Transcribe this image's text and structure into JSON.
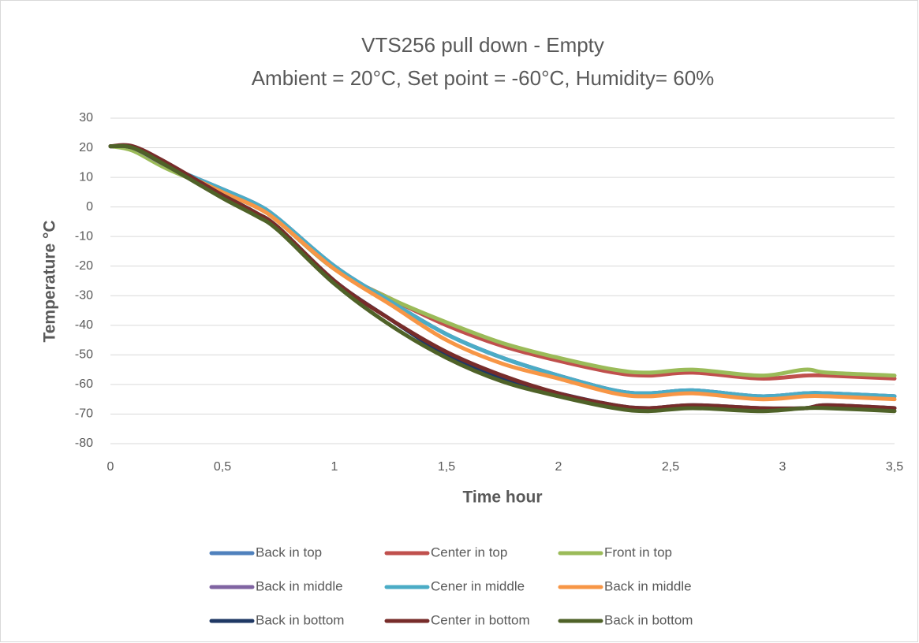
{
  "chart_data": {
    "type": "line",
    "title": "VTS256 pull down - Empty",
    "subtitle": "Ambient = 20°C, Set point = -60°C, Humidity= 60%",
    "x_label": "Time hour",
    "y_label": "Temperature °C",
    "x": [
      0,
      0.1,
      0.25,
      0.5,
      0.65,
      0.75,
      1,
      1.25,
      1.5,
      1.75,
      2,
      2.25,
      2.4,
      2.6,
      2.9,
      3.1,
      3.2,
      3.5
    ],
    "series": [
      {
        "name": "Back in top",
        "color": "#4f81bd",
        "values": [
          20.5,
          20,
          14,
          6,
          1,
          -4,
          -20,
          -32,
          -43,
          -51,
          -57,
          -62,
          -63,
          -62,
          -64,
          -63,
          -63,
          -64
        ]
      },
      {
        "name": "Center in top",
        "color": "#c0504d",
        "values": [
          20.5,
          20,
          14,
          5,
          0,
          -5,
          -21,
          -31,
          -40,
          -47,
          -52,
          -56,
          -57,
          -56,
          -58,
          -57,
          -57,
          -58
        ]
      },
      {
        "name": "Front in top",
        "color": "#9bbb59",
        "values": [
          20.5,
          19,
          13,
          5,
          0,
          -5,
          -21,
          -31,
          -39,
          -46,
          -51,
          -55,
          -56,
          -55,
          -57,
          -55,
          -56,
          -57
        ]
      },
      {
        "name": "Back in middle",
        "color": "#8064a2",
        "values": [
          20.5,
          20,
          14,
          6,
          1,
          -4,
          -20,
          -32,
          -43,
          -51,
          -57,
          -62,
          -63,
          -62,
          -64,
          -63,
          -63,
          -64
        ]
      },
      {
        "name": "Cener in middle",
        "color": "#4bacc6",
        "values": [
          20.5,
          20,
          14,
          6,
          1,
          -4,
          -20,
          -32,
          -43,
          -51,
          -57,
          -62,
          -63,
          -62,
          -64,
          -63,
          -63,
          -64
        ]
      },
      {
        "name": "Back in middle",
        "color": "#f79646",
        "values": [
          20.5,
          20,
          14,
          5,
          0,
          -5,
          -21,
          -33,
          -45,
          -53,
          -58,
          -63,
          -64,
          -63,
          -65,
          -64,
          -64,
          -65
        ]
      },
      {
        "name": "Back in bottom",
        "color": "#1f3864",
        "values": [
          20.5,
          20,
          14,
          4,
          -2,
          -7,
          -25,
          -38,
          -50,
          -58,
          -63,
          -67,
          -68,
          -67,
          -68,
          -68,
          -67,
          -68
        ]
      },
      {
        "name": "Center in bottom",
        "color": "#772c2a",
        "values": [
          20.5,
          20.5,
          15,
          4,
          -2,
          -7,
          -25,
          -38,
          -49,
          -57,
          -63,
          -67,
          -68,
          -67,
          -68,
          -68,
          -67,
          -68
        ]
      },
      {
        "name": "Back in bottom",
        "color": "#4f6228",
        "values": [
          20.5,
          20,
          14,
          3,
          -3,
          -8,
          -26,
          -40,
          -51,
          -59,
          -64,
          -68,
          -69,
          -68,
          -69,
          -68,
          -68,
          -69
        ]
      }
    ],
    "xlim": [
      0,
      3.5
    ],
    "xticks": [
      0,
      {
        "value": 0.5,
        "label": "0,5"
      },
      1,
      {
        "value": 1.5,
        "label": "1,5"
      },
      2,
      {
        "value": 2.5,
        "label": "2,5"
      },
      3,
      {
        "value": 3.5,
        "label": "3,5"
      }
    ],
    "ylim": [
      -80,
      30
    ],
    "yticks": [
      -80,
      -70,
      -60,
      -50,
      -40,
      -30,
      -20,
      -10,
      0,
      10,
      20,
      30
    ],
    "grid": true,
    "legend": "bottom"
  }
}
